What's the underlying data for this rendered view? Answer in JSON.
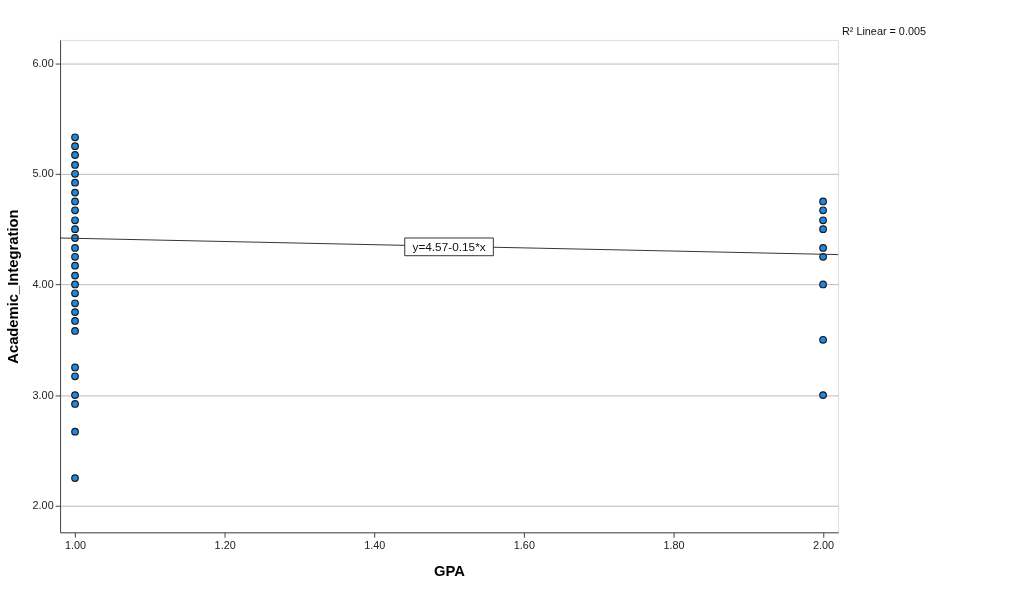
{
  "chart_data": {
    "type": "scatter",
    "xlabel": "GPA",
    "ylabel": "Academic_Integration",
    "xlim": [
      0.98,
      2.02
    ],
    "ylim": [
      1.76,
      6.21
    ],
    "xticks": [
      {
        "value": 1,
        "label": "1.00"
      },
      {
        "value": 1.2,
        "label": "1.20"
      },
      {
        "value": 1.4,
        "label": "1.40"
      },
      {
        "value": 1.6,
        "label": "1.60"
      },
      {
        "value": 1.8,
        "label": "1.80"
      },
      {
        "value": 2,
        "label": "2.00"
      }
    ],
    "yticks": [
      {
        "value": 2,
        "label": "2.00"
      },
      {
        "value": 3,
        "label": "3.00"
      },
      {
        "value": 4,
        "label": "4.00"
      },
      {
        "value": 5,
        "label": "5.00"
      },
      {
        "value": 6,
        "label": "6.00"
      }
    ],
    "grid": "y",
    "series": [
      {
        "marker": "circle",
        "color": "#1e88e5",
        "x": [
          1,
          1,
          1,
          1,
          1,
          1,
          1,
          1,
          1,
          1,
          1,
          1,
          1,
          1,
          1,
          1,
          1,
          1,
          1,
          1,
          1,
          1,
          1,
          1,
          1,
          1,
          1,
          1,
          2,
          2,
          2,
          2,
          2,
          2,
          2,
          2,
          2
        ],
        "values": [
          5.33,
          5.25,
          5.17,
          5.08,
          5.0,
          4.92,
          4.83,
          4.75,
          4.67,
          4.58,
          4.5,
          4.42,
          4.33,
          4.25,
          4.17,
          4.08,
          4.0,
          3.92,
          3.83,
          3.75,
          3.67,
          3.58,
          3.25,
          3.17,
          3.0,
          2.92,
          2.67,
          2.25,
          4.75,
          4.67,
          4.58,
          4.5,
          4.33,
          4.25,
          4.0,
          3.5,
          3.0
        ]
      },
      {
        "type": "line",
        "color": "#333333",
        "x": [
          0.98,
          2.02
        ],
        "values": [
          4.42,
          4.27
        ]
      }
    ],
    "annotations": [
      {
        "text": "y=4.57-0.15*x",
        "x": 1.5,
        "y": 4.34
      },
      "R² Linear = 0.005"
    ]
  }
}
